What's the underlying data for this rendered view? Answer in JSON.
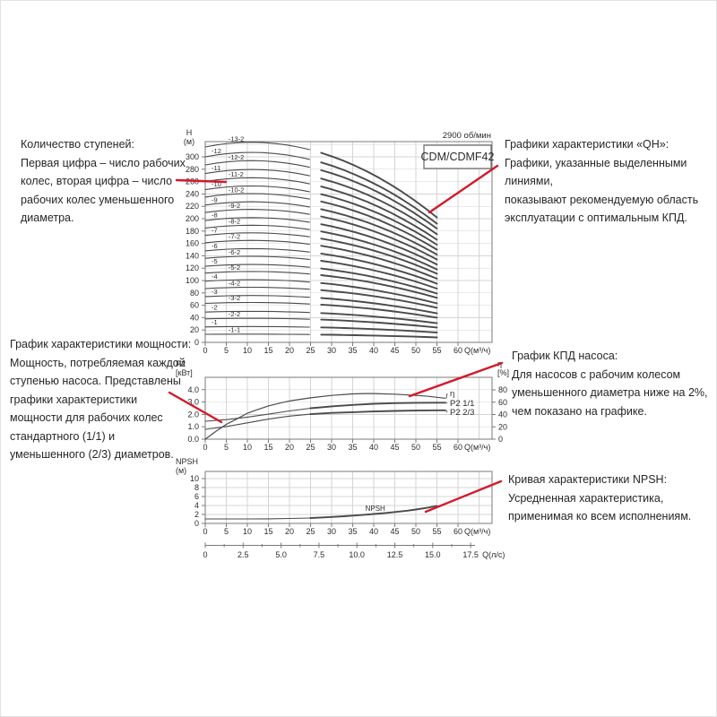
{
  "accent_red": "#d6182b",
  "annotations": {
    "stages": {
      "title": "Количество ступеней:",
      "body": "Первая цифра – число рабочих\nколес, вторая цифра – число\nрабочих колес уменьшенного\nдиаметра."
    },
    "qh": {
      "title": "Графики характеристики «QH»:",
      "body": "Графики, указанные выделенными линиями,\nпоказывают рекомендуемую область\nэксплуатации с оптимальным КПД."
    },
    "power": {
      "title": "График характеристики мощности:",
      "body": "Мощность, потребляемая каждой\nступенью насоса. Представлены\nграфики характеристики\nмощности для рабочих колес\nстандартного (1/1) и\nуменьшенного (2/3) диаметров."
    },
    "efficiency": {
      "title": "График КПД насоса:",
      "body": "Для насосов с рабочим колесом\nуменьшенного диаметра ниже на 2%,\nчем показано на графике."
    },
    "npsh": {
      "title": "Кривая характеристики NPSH:",
      "body": "Усредненная характеристика,\nприменимая ко всем исполнениям."
    }
  },
  "chart_data": [
    {
      "id": "qh",
      "type": "line",
      "rpm_label": "2900 об/мин",
      "model_badge": "CDM/CDMF42",
      "ylabel_lines": [
        "H",
        "(м)"
      ],
      "xlabel": "Q(м³/ч)",
      "x_ticks": [
        0,
        5,
        10,
        15,
        20,
        25,
        30,
        35,
        40,
        45,
        50,
        55,
        60
      ],
      "y_ticks": [
        0,
        20,
        40,
        60,
        80,
        100,
        120,
        140,
        160,
        180,
        200,
        220,
        240,
        260,
        280,
        300
      ],
      "xlim": [
        0,
        68
      ],
      "ylim": [
        0,
        325
      ],
      "q_end": 55,
      "bold_from_q": 25,
      "curves": [
        {
          "label": "-13-2",
          "h0": 316,
          "h55": 202
        },
        {
          "label": "-12",
          "h0": 300,
          "h55": 192
        },
        {
          "label": "-12-2",
          "h0": 287,
          "h55": 184
        },
        {
          "label": "-11",
          "h0": 273,
          "h55": 175
        },
        {
          "label": "-11-2",
          "h0": 260,
          "h55": 166
        },
        {
          "label": "-10",
          "h0": 247,
          "h55": 158
        },
        {
          "label": "-10-2",
          "h0": 235,
          "h55": 150
        },
        {
          "label": "-9",
          "h0": 222,
          "h55": 142
        },
        {
          "label": "-9-2",
          "h0": 210,
          "h55": 134
        },
        {
          "label": "-8",
          "h0": 197,
          "h55": 126
        },
        {
          "label": "-8-2",
          "h0": 185,
          "h55": 118
        },
        {
          "label": "-7",
          "h0": 173,
          "h55": 111
        },
        {
          "label": "-7-2",
          "h0": 161,
          "h55": 103
        },
        {
          "label": "-6",
          "h0": 148,
          "h55": 95
        },
        {
          "label": "-6-2",
          "h0": 136,
          "h55": 87
        },
        {
          "label": "-5",
          "h0": 123,
          "h55": 79
        },
        {
          "label": "-5-2",
          "h0": 112,
          "h55": 72
        },
        {
          "label": "-4",
          "h0": 99,
          "h55": 63
        },
        {
          "label": "-4-2",
          "h0": 87,
          "h55": 56
        },
        {
          "label": "-3",
          "h0": 74,
          "h55": 47
        },
        {
          "label": "-3-2",
          "h0": 63,
          "h55": 40
        },
        {
          "label": "-2",
          "h0": 49,
          "h55": 31
        },
        {
          "label": "-2-2",
          "h0": 38,
          "h55": 24
        },
        {
          "label": "-1",
          "h0": 25,
          "h55": 16
        },
        {
          "label": "-1-1",
          "h0": 13,
          "h55": 8
        }
      ]
    },
    {
      "id": "power-efficiency",
      "type": "line",
      "ylabel_left_lines": [
        "P2",
        "[кВт]"
      ],
      "ylabel_right_lines": [
        "η",
        "[%]"
      ],
      "xlabel": "Q(м³/ч)",
      "x_ticks": [
        0,
        5,
        10,
        15,
        20,
        25,
        30,
        35,
        40,
        45,
        50,
        55,
        60
      ],
      "y_left_ticks": [
        "0.0",
        "1.0",
        "2.0",
        "3.0",
        "4.0"
      ],
      "y_right_ticks": [
        0,
        20,
        40,
        60,
        80
      ],
      "y_left_range": [
        0,
        5
      ],
      "y_right_range": [
        0,
        100
      ],
      "series": [
        {
          "name": "η",
          "axis": "right",
          "bold_from": null,
          "points": [
            [
              0,
              0
            ],
            [
              1,
              5
            ],
            [
              2,
              10
            ],
            [
              3,
              15
            ],
            [
              5,
              24
            ],
            [
              7,
              31
            ],
            [
              10,
              42
            ],
            [
              12,
              47
            ],
            [
              15,
              54
            ],
            [
              18,
              59
            ],
            [
              20,
              62
            ],
            [
              25,
              67
            ],
            [
              30,
              71
            ],
            [
              35,
              73.5
            ],
            [
              38,
              74
            ],
            [
              40,
              74
            ],
            [
              45,
              73
            ],
            [
              50,
              71
            ],
            [
              53,
              69.5
            ],
            [
              55,
              68
            ],
            [
              57,
              66.5
            ]
          ]
        },
        {
          "name": "P2 1/1",
          "axis": "left",
          "bold_from": 25,
          "points": [
            [
              0,
              1.45
            ],
            [
              5,
              1.58
            ],
            [
              10,
              1.78
            ],
            [
              15,
              2.02
            ],
            [
              20,
              2.28
            ],
            [
              25,
              2.5
            ],
            [
              30,
              2.65
            ],
            [
              35,
              2.77
            ],
            [
              40,
              2.86
            ],
            [
              45,
              2.91
            ],
            [
              50,
              2.94
            ],
            [
              55,
              2.95
            ],
            [
              57,
              2.95
            ]
          ]
        },
        {
          "name": "P2 2/3",
          "axis": "left",
          "bold_from": 25,
          "points": [
            [
              0,
              0.8
            ],
            [
              5,
              1.02
            ],
            [
              10,
              1.32
            ],
            [
              15,
              1.62
            ],
            [
              20,
              1.86
            ],
            [
              25,
              2.02
            ],
            [
              30,
              2.12
            ],
            [
              35,
              2.18
            ],
            [
              40,
              2.24
            ],
            [
              45,
              2.28
            ],
            [
              50,
              2.31
            ],
            [
              55,
              2.33
            ],
            [
              57,
              2.33
            ]
          ]
        }
      ]
    },
    {
      "id": "npsh",
      "type": "line",
      "ylabel_lines": [
        "NPSH",
        "(м)"
      ],
      "xlabel": "Q(м³/ч)",
      "xlabel2": "Q(л/с)",
      "x_ticks": [
        0,
        5,
        10,
        15,
        20,
        25,
        30,
        35,
        40,
        45,
        50,
        55,
        60
      ],
      "x2_ticks": [
        "0",
        "2.5",
        "5.0",
        "7.5",
        "10.0",
        "12.5",
        "15.0",
        "17.5"
      ],
      "y_ticks": [
        0,
        2,
        4,
        6,
        8,
        10
      ],
      "series": [
        {
          "name": "NPSH",
          "bold_from": 25,
          "points": [
            [
              0,
              1
            ],
            [
              5,
              1
            ],
            [
              10,
              1
            ],
            [
              15,
              1.02
            ],
            [
              20,
              1.1
            ],
            [
              25,
              1.2
            ],
            [
              28,
              1.33
            ],
            [
              30,
              1.45
            ],
            [
              33,
              1.6
            ],
            [
              35,
              1.75
            ],
            [
              38,
              1.95
            ],
            [
              40,
              2.1
            ],
            [
              43,
              2.35
            ],
            [
              45,
              2.55
            ],
            [
              48,
              2.85
            ],
            [
              50,
              3.1
            ],
            [
              53,
              3.55
            ],
            [
              55,
              3.9
            ]
          ]
        }
      ]
    }
  ]
}
